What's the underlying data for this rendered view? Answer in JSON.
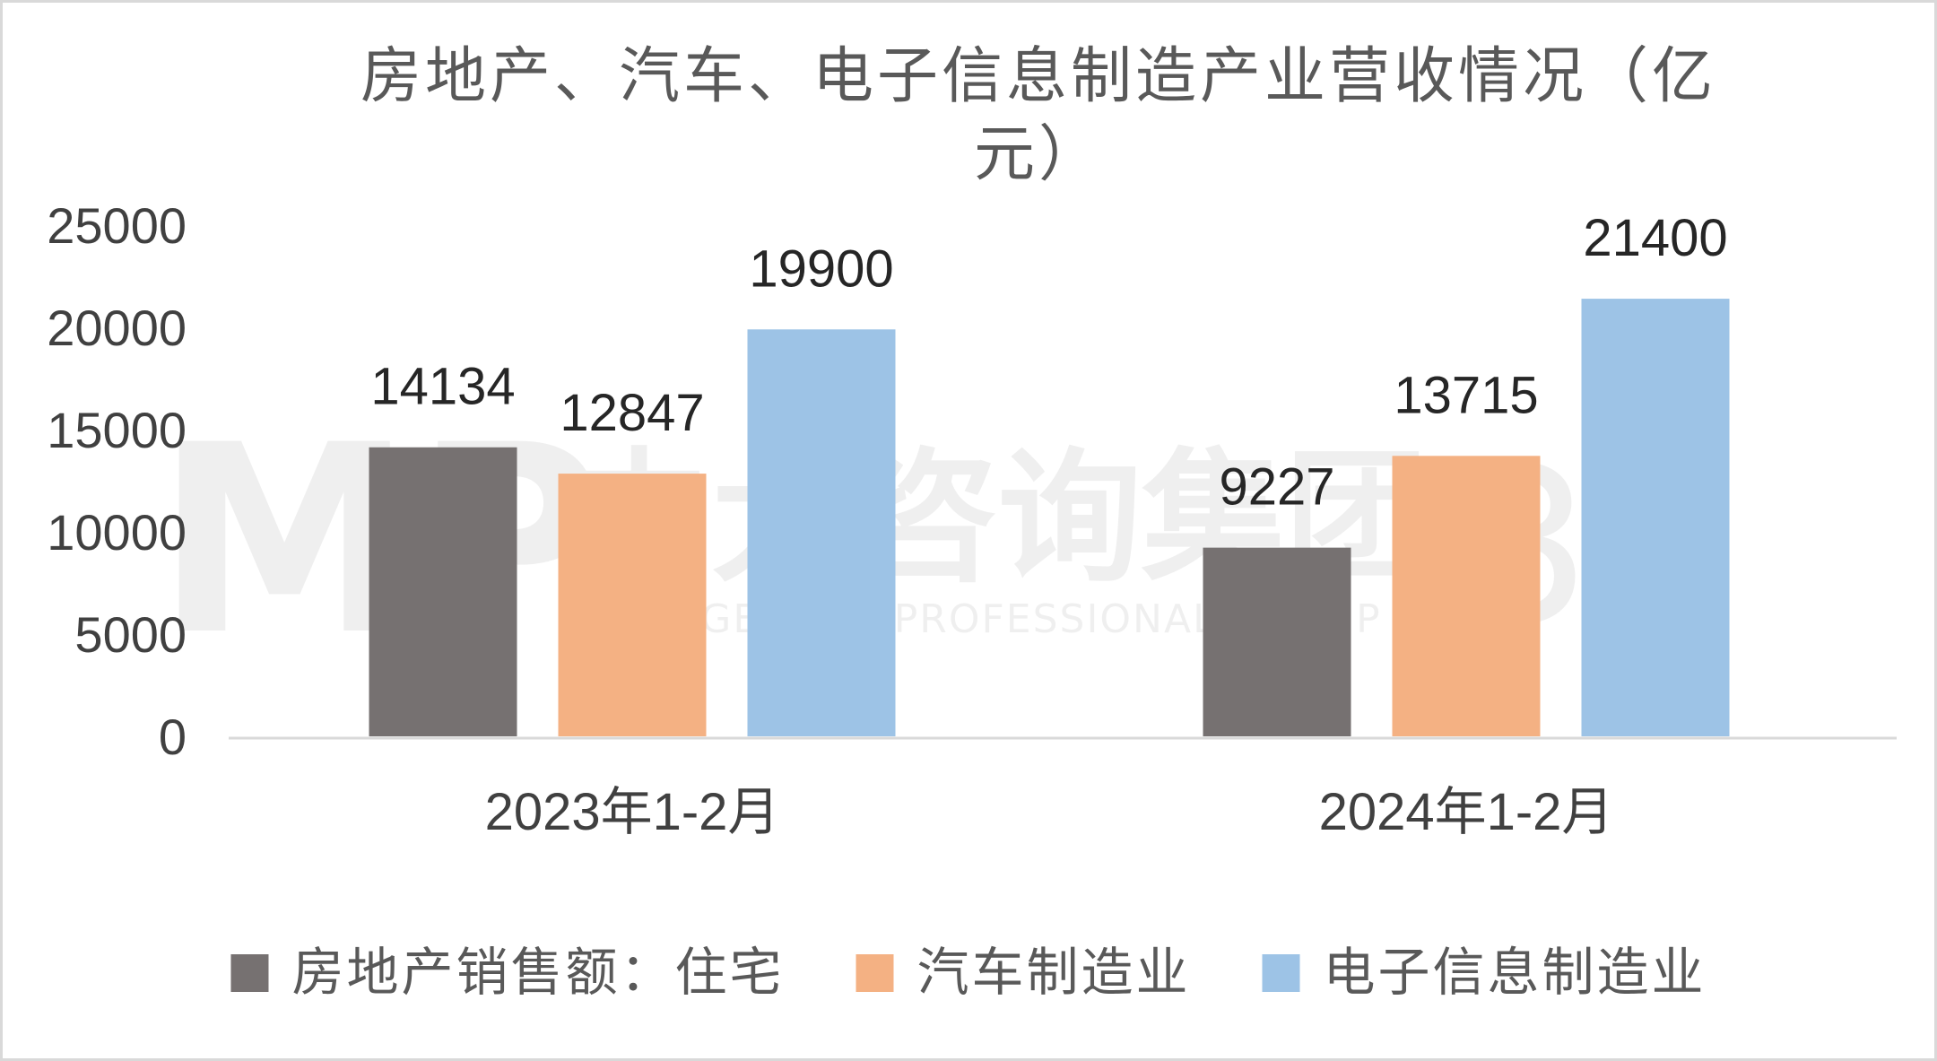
{
  "chart_data": {
    "type": "bar",
    "title_line1": "房地产、汽车、电子信息制造产业营收情况（亿",
    "title_line2": "元）",
    "categories": [
      "2023年1-2月",
      "2024年1-2月"
    ],
    "series": [
      {
        "name": "房地产销售额：住宅",
        "values": [
          14134,
          9227
        ],
        "color": "#767171"
      },
      {
        "name": "汽车制造业",
        "values": [
          12847,
          13715
        ],
        "color": "#F4B183"
      },
      {
        "name": "电子信息制造业",
        "values": [
          19900,
          21400
        ],
        "color": "#9DC3E6"
      }
    ],
    "yticks": [
      "0",
      "5000",
      "10000",
      "15000",
      "20000",
      "25000"
    ],
    "ylim": [
      0,
      25000
    ],
    "grid": false,
    "legend_position": "bottom"
  },
  "watermark": {
    "logo_text": "MP",
    "chinese": "中大咨询集团",
    "english": "MANAGEMENT PROFESSIONAL GROUP",
    "badge": "30"
  }
}
